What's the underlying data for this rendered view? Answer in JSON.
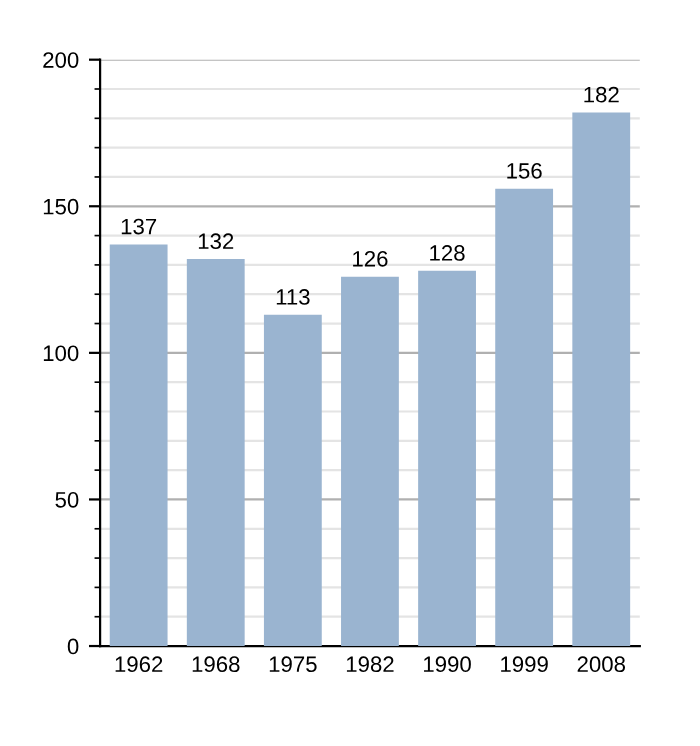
{
  "chart_data": {
    "type": "bar",
    "categories": [
      "1962",
      "1968",
      "1975",
      "1982",
      "1990",
      "1999",
      "2008"
    ],
    "values": [
      137,
      132,
      113,
      126,
      128,
      156,
      182
    ],
    "color": "#9ab4d0",
    "ylim": [
      0,
      200
    ],
    "yticks": [
      0,
      50,
      100,
      150,
      200
    ],
    "grid": "y",
    "data_labels": true
  }
}
